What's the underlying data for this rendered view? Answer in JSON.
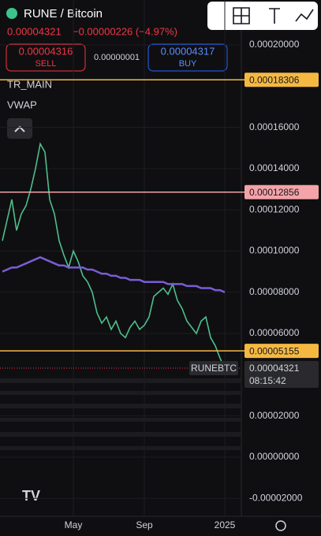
{
  "header": {
    "symbol": "RUNE / Bitcoin",
    "price": "0.00004321",
    "change": "−0.00000226 (−4.97%)",
    "sell_price": "0.00004316",
    "sell": "SELL",
    "spread": "0.00000001",
    "buy_price": "0.00004317",
    "buy": "BUY"
  },
  "chart_data": {
    "type": "line",
    "categories": [
      null,
      null,
      null,
      null,
      null,
      null,
      null,
      null,
      null,
      null,
      null,
      null,
      null,
      null,
      null,
      "May",
      null,
      null,
      null,
      null,
      null,
      null,
      null,
      null,
      null,
      null,
      null,
      null,
      null,
      null,
      "Sep",
      null,
      null,
      null,
      null,
      null,
      null,
      null,
      null,
      null,
      null,
      null,
      null,
      null,
      null,
      null,
      null,
      "2025"
    ],
    "series": [
      {
        "name": "TR_MAIN",
        "color": "#4fbf8c",
        "values": [
          0.000105,
          0.000115,
          0.000125,
          0.00011,
          0.000118,
          0.000122,
          0.00013,
          0.00014,
          0.000152,
          0.000148,
          0.000125,
          0.000118,
          0.000105,
          9.8e-05,
          9.2e-05,
          0.0001,
          9.5e-05,
          8.8e-05,
          8.5e-05,
          8e-05,
          7e-05,
          6.5e-05,
          6.8e-05,
          6.2e-05,
          6.6e-05,
          6e-05,
          5.8e-05,
          6.3e-05,
          6.6e-05,
          6.2e-05,
          6.4e-05,
          6.8e-05,
          7.8e-05,
          8e-05,
          8.2e-05,
          7.9e-05,
          8.4e-05,
          7.6e-05,
          7.2e-05,
          6.6e-05,
          6.3e-05,
          6e-05,
          6.6e-05,
          6.8e-05,
          5.8e-05,
          5.4e-05,
          4.8e-05,
          4.321e-05
        ]
      },
      {
        "name": "VWAP",
        "color": "#7b5cd6",
        "values": [
          9e-05,
          9.1e-05,
          9.2e-05,
          9.2e-05,
          9.3e-05,
          9.4e-05,
          9.5e-05,
          9.6e-05,
          9.7e-05,
          9.6e-05,
          9.5e-05,
          9.4e-05,
          9.3e-05,
          9.3e-05,
          9.2e-05,
          9.2e-05,
          9.2e-05,
          9.2e-05,
          9.1e-05,
          9.1e-05,
          9e-05,
          8.9e-05,
          8.9e-05,
          8.8e-05,
          8.8e-05,
          8.7e-05,
          8.7e-05,
          8.6e-05,
          8.6e-05,
          8.6e-05,
          8.5e-05,
          8.5e-05,
          8.5e-05,
          8.5e-05,
          8.5e-05,
          8.4e-05,
          8.4e-05,
          8.4e-05,
          8.4e-05,
          8.3e-05,
          8.3e-05,
          8.3e-05,
          8.2e-05,
          8.2e-05,
          8.2e-05,
          8.1e-05,
          8.1e-05,
          8e-05
        ]
      }
    ],
    "ylim": [
      -2.87e-05,
      0.0002218
    ],
    "yticks": [
      {
        "value": 0.0002,
        "label": "0.00020000"
      },
      {
        "value": 0.00016,
        "label": "0.00016000"
      },
      {
        "value": 0.00014,
        "label": "0.00014000"
      },
      {
        "value": 0.00012,
        "label": "0.00012000"
      },
      {
        "value": 0.0001,
        "label": "0.00010000"
      },
      {
        "value": 8e-05,
        "label": "0.00008000"
      },
      {
        "value": 6e-05,
        "label": "0.00006000"
      },
      {
        "value": 2e-05,
        "label": "0.00002000"
      },
      {
        "value": 0,
        "label": "0.00000000"
      },
      {
        "value": -2e-05,
        "label": "-0.00002000"
      }
    ],
    "hlines": [
      {
        "value": 0.00018306,
        "label": "0.00018306",
        "color": "#f5b942"
      },
      {
        "value": 0.00012856,
        "label": "0.00012856",
        "color": "#f4a3a8"
      },
      {
        "value": 5.155e-05,
        "label": "0.00005155",
        "color": "#f5b942"
      }
    ],
    "current": {
      "name": "RUNEBTC",
      "value": 4.321e-05,
      "label": "0.00004321",
      "countdown": "08:15:42",
      "color": "#f23645"
    }
  }
}
